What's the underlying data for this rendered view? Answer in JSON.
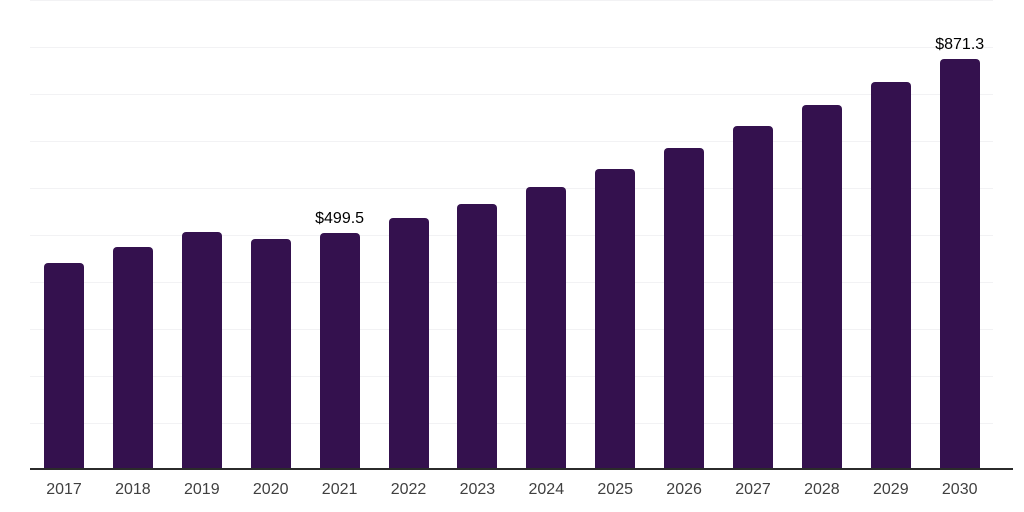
{
  "chart_data": {
    "type": "bar",
    "title": "",
    "xlabel": "",
    "ylabel": "",
    "categories": [
      "2017",
      "2018",
      "2019",
      "2020",
      "2021",
      "2022",
      "2023",
      "2024",
      "2025",
      "2026",
      "2027",
      "2028",
      "2029",
      "2030"
    ],
    "values": [
      437,
      470,
      503,
      487,
      499.5,
      531,
      562,
      597,
      636,
      681,
      727,
      773,
      822,
      871.3
    ],
    "data_labels": {
      "2021": "$499.5",
      "2030": "$871.3"
    },
    "ylim": [
      0,
      1000
    ],
    "grid_step": 100,
    "grid": "horizontal",
    "legend": "none",
    "colors": {
      "bar": "#34114e",
      "axis": "#2b2b2b",
      "gridline": "#f2f2f4",
      "tick_label": "#404040",
      "data_label": "#000000",
      "background": "#ffffff"
    }
  }
}
